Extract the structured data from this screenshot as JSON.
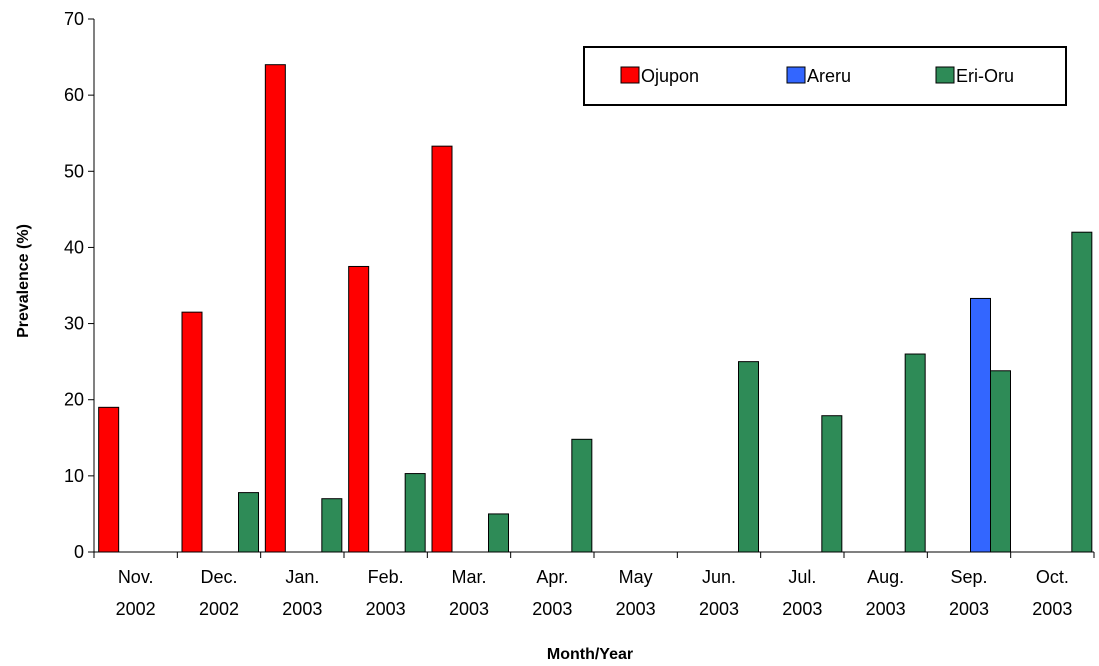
{
  "chart_data": {
    "type": "bar",
    "title": "",
    "xlabel": "Month/Year",
    "ylabel": "Prevalence (%)",
    "ylim": [
      0,
      70
    ],
    "yticks": [
      "0",
      "10",
      "20",
      "30",
      "40",
      "50",
      "60",
      "70"
    ],
    "categories": [
      [
        "Nov.",
        "2002"
      ],
      [
        "Dec.",
        "2002"
      ],
      [
        "Jan.",
        "2003"
      ],
      [
        "Feb.",
        "2003"
      ],
      [
        "Mar.",
        "2003"
      ],
      [
        "Apr.",
        "2003"
      ],
      [
        "May",
        "2003"
      ],
      [
        "Jun.",
        "2003"
      ],
      [
        "Jul.",
        "2003"
      ],
      [
        "Aug.",
        "2003"
      ],
      [
        "Sep.",
        "2003"
      ],
      [
        "Oct.",
        "2003"
      ]
    ],
    "series": [
      {
        "name": "Ojupon",
        "color": "#ff0000",
        "values": [
          19,
          31.5,
          64,
          37.5,
          53.3,
          null,
          null,
          null,
          null,
          null,
          null,
          null
        ]
      },
      {
        "name": "Areru",
        "color": "#3366ff",
        "values": [
          null,
          null,
          null,
          null,
          null,
          null,
          null,
          null,
          null,
          null,
          33.3,
          null
        ]
      },
      {
        "name": "Eri-Oru",
        "color": "#2e8b57",
        "values": [
          null,
          7.8,
          7,
          10.3,
          5,
          14.8,
          null,
          25,
          17.9,
          26,
          23.8,
          42
        ]
      }
    ],
    "grid": false,
    "legend_position": "top-right"
  }
}
